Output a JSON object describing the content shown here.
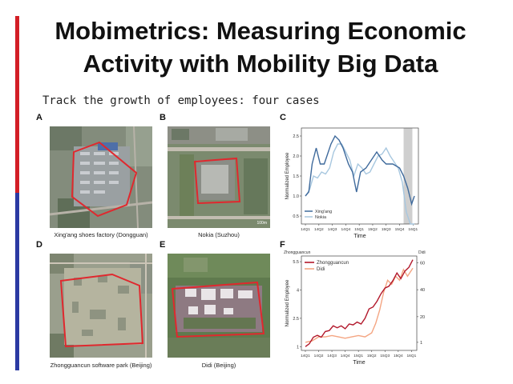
{
  "slide": {
    "title_line1": "Mobimetrics: Measuring Economic",
    "title_line2": "Activity with Mobility Big Data",
    "subtitle": "Track the growth of employees: four cases"
  },
  "panels": {
    "a": {
      "letter": "A",
      "caption": "Xing'ang shoes factory (Dongguan)"
    },
    "b": {
      "letter": "B",
      "caption": "Nokia (Suzhou)",
      "scale_label": "100m"
    },
    "c": {
      "letter": "C"
    },
    "d": {
      "letter": "D",
      "caption": "Zhongguancun software park (Beijing)"
    },
    "e": {
      "letter": "E",
      "caption": "Didi (Beijing)"
    },
    "f": {
      "letter": "F"
    }
  },
  "colors": {
    "accent_red": "#d31f26",
    "accent_blue": "#2b3aa3",
    "outline": "#e0282e"
  },
  "chart_data": [
    {
      "id": "C",
      "type": "line",
      "x": [
        "14Q1",
        "14Q2",
        "14Q3",
        "14Q4",
        "15Q1",
        "15Q2",
        "15Q3",
        "15Q4",
        "16Q1"
      ],
      "xlabel": "Time",
      "ylabel": "Normalized Employee",
      "yticks": [
        "0.5",
        "1.0",
        "1.5",
        "2.0",
        "2.5"
      ],
      "ylim": [
        0.3,
        2.7
      ],
      "shaded_region": [
        "15Q4",
        "16Q1"
      ],
      "legend": "bottom-left",
      "series": [
        {
          "name": "Xing'ang",
          "color": "#3f6a9c",
          "points": [
            [
              0,
              1
            ],
            [
              0.25,
              1.1
            ],
            [
              0.5,
              1.8
            ],
            [
              0.8,
              2.2
            ],
            [
              1.1,
              1.8
            ],
            [
              1.4,
              1.8
            ],
            [
              1.9,
              2.3
            ],
            [
              2.2,
              2.5
            ],
            [
              2.5,
              2.4
            ],
            [
              2.8,
              2.2
            ],
            [
              3.2,
              1.8
            ],
            [
              3.5,
              1.6
            ],
            [
              3.8,
              1.1
            ],
            [
              4.1,
              1.6
            ],
            [
              4.5,
              1.7
            ],
            [
              4.9,
              1.9
            ],
            [
              5.3,
              2.1
            ],
            [
              5.7,
              1.9
            ],
            [
              6.0,
              1.8
            ],
            [
              6.5,
              1.8
            ],
            [
              7.0,
              1.7
            ],
            [
              7.3,
              1.5
            ],
            [
              7.6,
              1.2
            ],
            [
              7.9,
              0.8
            ],
            [
              8.1,
              1.0
            ]
          ]
        },
        {
          "name": "Nokia",
          "color": "#a7c7df",
          "points": [
            [
              0,
              1
            ],
            [
              0.3,
              1.15
            ],
            [
              0.6,
              1.5
            ],
            [
              0.9,
              1.45
            ],
            [
              1.2,
              1.6
            ],
            [
              1.5,
              1.55
            ],
            [
              1.8,
              1.7
            ],
            [
              2.1,
              2.1
            ],
            [
              2.4,
              2.3
            ],
            [
              2.7,
              2.3
            ],
            [
              3.0,
              2.1
            ],
            [
              3.3,
              1.9
            ],
            [
              3.6,
              1.5
            ],
            [
              3.9,
              1.8
            ],
            [
              4.2,
              1.7
            ],
            [
              4.5,
              1.55
            ],
            [
              4.8,
              1.6
            ],
            [
              5.1,
              1.8
            ],
            [
              5.4,
              2.0
            ],
            [
              5.7,
              2.05
            ],
            [
              6.0,
              2.2
            ],
            [
              6.3,
              2.0
            ],
            [
              6.6,
              1.85
            ],
            [
              6.9,
              1.7
            ],
            [
              7.2,
              1.35
            ],
            [
              7.5,
              0.6
            ],
            [
              7.8,
              0.3
            ],
            [
              8.1,
              0.3
            ]
          ]
        }
      ]
    },
    {
      "id": "F",
      "type": "line",
      "x": [
        "14Q1",
        "14Q2",
        "14Q3",
        "14Q4",
        "15Q1",
        "15Q2",
        "15Q3",
        "15Q4",
        "16Q1"
      ],
      "xlabel": "Time",
      "ylabel": "Normalized Employee",
      "left_axis_title": "Zhongguancun",
      "right_axis_title": "Didi",
      "yticks_left": [
        "1",
        "2.5",
        "4",
        "5.5"
      ],
      "yticks_right": [
        "1",
        "20",
        "40",
        "60"
      ],
      "ylim_left": [
        0.8,
        5.8
      ],
      "ylim_right": [
        -5,
        65
      ],
      "legend": "top-left",
      "series": [
        {
          "name": "Zhongguancun",
          "axis": "left",
          "color": "#b2182b",
          "points": [
            [
              0,
              1
            ],
            [
              0.3,
              1.15
            ],
            [
              0.6,
              1.5
            ],
            [
              0.9,
              1.6
            ],
            [
              1.2,
              1.5
            ],
            [
              1.5,
              1.8
            ],
            [
              1.8,
              1.85
            ],
            [
              2.1,
              2.1
            ],
            [
              2.4,
              2.0
            ],
            [
              2.7,
              2.1
            ],
            [
              3.0,
              1.95
            ],
            [
              3.3,
              2.2
            ],
            [
              3.6,
              2.15
            ],
            [
              3.9,
              2.3
            ],
            [
              4.2,
              2.2
            ],
            [
              4.5,
              2.5
            ],
            [
              4.8,
              3.0
            ],
            [
              5.1,
              3.1
            ],
            [
              5.4,
              3.4
            ],
            [
              5.7,
              3.8
            ],
            [
              6.0,
              4.1
            ],
            [
              6.3,
              4.2
            ],
            [
              6.6,
              4.5
            ],
            [
              6.9,
              4.9
            ],
            [
              7.2,
              4.6
            ],
            [
              7.5,
              5.0
            ],
            [
              7.8,
              5.2
            ],
            [
              8.1,
              5.6
            ]
          ]
        },
        {
          "name": "Didi",
          "axis": "right",
          "color": "#f4a582",
          "points": [
            [
              0,
              1
            ],
            [
              0.5,
              2
            ],
            [
              1.0,
              5
            ],
            [
              1.5,
              5
            ],
            [
              2.0,
              6
            ],
            [
              2.5,
              5
            ],
            [
              3.0,
              4
            ],
            [
              3.5,
              5
            ],
            [
              4.0,
              6
            ],
            [
              4.5,
              5
            ],
            [
              5.0,
              8
            ],
            [
              5.3,
              15
            ],
            [
              5.6,
              25
            ],
            [
              5.9,
              38
            ],
            [
              6.2,
              47
            ],
            [
              6.5,
              44
            ],
            [
              6.8,
              50
            ],
            [
              7.1,
              47
            ],
            [
              7.4,
              55
            ],
            [
              7.7,
              50
            ],
            [
              8.1,
              56
            ]
          ]
        }
      ]
    }
  ]
}
